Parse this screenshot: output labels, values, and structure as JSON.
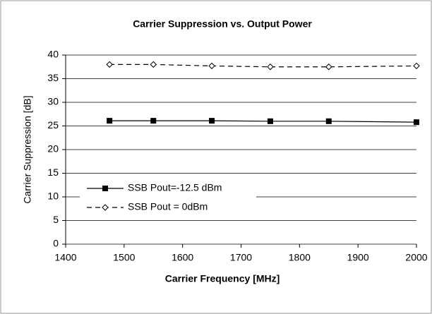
{
  "chart_data": {
    "type": "line",
    "title": "Carrier Suppression vs. Output Power",
    "x_label": "Carrier Frequency [MHz]",
    "y_label": "Carrier Suppression [dB]",
    "x": [
      1475,
      1550,
      1650,
      1750,
      1850,
      2000
    ],
    "series": [
      {
        "name": "SSB Pout=-12.5 dBm",
        "color": "#000000",
        "marker": "square",
        "line_style": "solid",
        "values": [
          26.1,
          26.1,
          26.1,
          26.0,
          26.0,
          25.8
        ]
      },
      {
        "name": "SSB Pout = 0dBm",
        "color": "#000000",
        "marker": "diamond",
        "line_style": "dashed",
        "values": [
          38.0,
          38.0,
          37.7,
          37.5,
          37.5,
          37.7
        ]
      }
    ],
    "xlim": [
      1400,
      2000
    ],
    "xticks": [
      1400,
      1500,
      1600,
      1700,
      1800,
      1900,
      2000
    ],
    "ylim": [
      0,
      40
    ],
    "yticks": [
      0,
      5,
      10,
      15,
      20,
      25,
      30,
      35,
      40
    ],
    "grid": true,
    "legend": "left"
  }
}
